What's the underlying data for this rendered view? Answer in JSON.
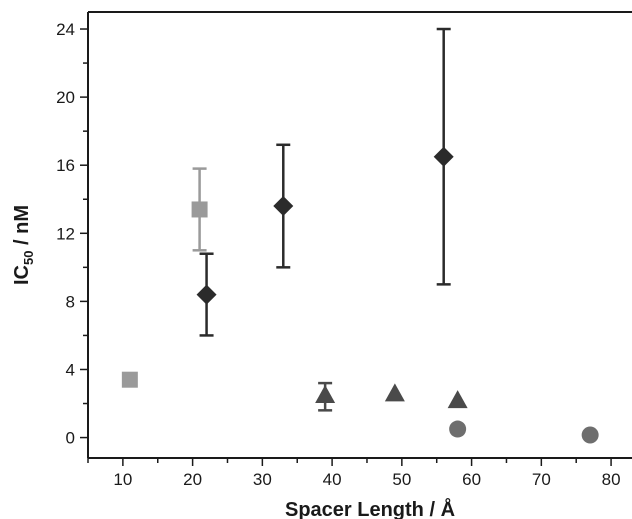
{
  "chart_data": {
    "type": "scatter",
    "title": "",
    "xlabel": "Spacer Length / Å",
    "ylabel_main": "IC",
    "ylabel_sub": "50",
    "ylabel_unit": " / nM",
    "xlim": [
      5,
      83
    ],
    "ylim": [
      -1.2,
      25
    ],
    "xticks": [
      10,
      20,
      30,
      40,
      50,
      60,
      70,
      80
    ],
    "yticks": [
      0,
      4,
      8,
      12,
      16,
      20,
      24
    ],
    "grid": false,
    "legend": "none",
    "series": [
      {
        "marker": "square",
        "color": "#9a9a9a",
        "points": [
          {
            "x": 11,
            "y": 3.4
          },
          {
            "x": 21,
            "y": 13.4,
            "err_low": 11.0,
            "err_high": 15.8
          }
        ]
      },
      {
        "marker": "diamond",
        "color": "#2b2b2b",
        "points": [
          {
            "x": 22,
            "y": 8.4,
            "err_low": 6.0,
            "err_high": 10.8
          },
          {
            "x": 33,
            "y": 13.6,
            "err_low": 10.0,
            "err_high": 17.2
          },
          {
            "x": 56,
            "y": 16.5,
            "err_low": 9.0,
            "err_high": 24.0
          }
        ]
      },
      {
        "marker": "triangle",
        "color": "#4a4a4a",
        "points": [
          {
            "x": 39,
            "y": 2.5,
            "err_low": 1.6,
            "err_high": 3.2
          },
          {
            "x": 49,
            "y": 2.6
          },
          {
            "x": 58,
            "y": 2.2
          }
        ]
      },
      {
        "marker": "circle",
        "color": "#6e6e6e",
        "points": [
          {
            "x": 58,
            "y": 0.5
          },
          {
            "x": 77,
            "y": 0.15
          }
        ]
      }
    ]
  }
}
